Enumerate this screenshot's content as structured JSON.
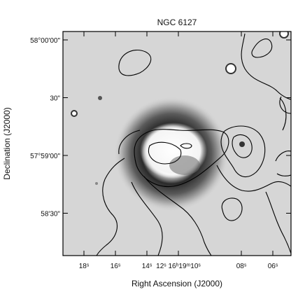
{
  "figure": {
    "title": "NGC 6127",
    "xlabel": "Right Ascension (J2000)",
    "ylabel": "Declination (J2000)",
    "y_ticks": [
      {
        "label": "58°00'00\"",
        "dec_arcsec_from_575900": 60
      },
      {
        "label": "30\"",
        "dec_arcsec_from_575900": 30
      },
      {
        "label": "57°59'00\"",
        "dec_arcsec_from_575900": 0
      },
      {
        "label": "58'30\"",
        "dec_arcsec_from_575900": -30
      }
    ],
    "x_ticks": [
      {
        "label": "18ˢ",
        "ra_sec": 18
      },
      {
        "label": "16ˢ",
        "ra_sec": 16
      },
      {
        "label": "14ˢ",
        "ra_sec": 14
      },
      {
        "label": "12ˢ 16ʰ19ᵐ10ˢ",
        "ra_sec": 12
      },
      {
        "label": "08ˢ",
        "ra_sec": 8
      },
      {
        "label": "06ˢ",
        "ra_sec": 6
      }
    ],
    "colors": {
      "background_gray": "#d6d6d6",
      "contour": "#000000",
      "frame": "#000000"
    }
  }
}
